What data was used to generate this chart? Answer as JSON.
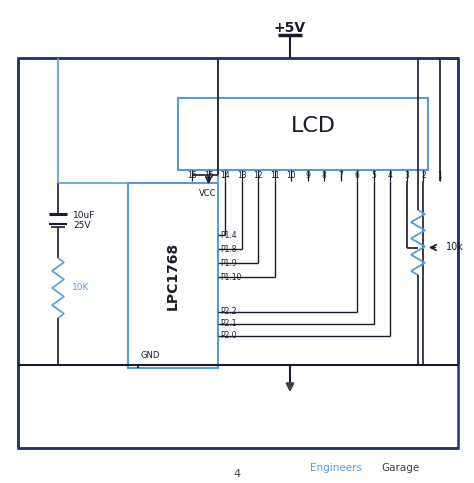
{
  "bg_color": "#ffffff",
  "outer_bg": "#f8f8f8",
  "white": "#ffffff",
  "black": "#1a1a2e",
  "blue": "#5b9bd5",
  "dark_blue": "#1f3864",
  "gray": "#404040",
  "title": "+5V",
  "lcd_label": "LCD",
  "ic_label": "LPC1768",
  "watermark_engineers": "Engineers",
  "watermark_garage": "Garage",
  "page_num": "4",
  "pin_labels": [
    "16",
    "15",
    "14",
    "13",
    "12",
    "11",
    "10",
    "9",
    "8",
    "7",
    "6",
    "5",
    "4",
    "3",
    "2",
    "1"
  ],
  "port_labels_upper": [
    "P1.4",
    "P1.8",
    "P1.9",
    "P1.10"
  ],
  "port_labels_lower": [
    "P2.2",
    "P2.1",
    "P2.0"
  ],
  "cap_label1": "10uF",
  "cap_label2": "25V",
  "res_left_label": "10K",
  "res_right_label": "10k",
  "gnd_label": "GND",
  "vcc_label": "VCC"
}
